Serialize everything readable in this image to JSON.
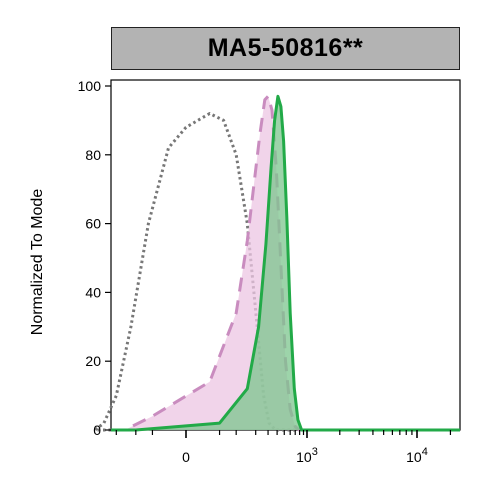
{
  "chart_data": {
    "type": "area",
    "title": "MA5-50816**",
    "xlabel": "",
    "ylabel": "Normalized To Mode",
    "ylim": [
      0,
      100
    ],
    "yticks": [
      0,
      20,
      40,
      60,
      80,
      100
    ],
    "xscale": "biexponential",
    "xticks": [
      {
        "value": 0,
        "label": "0",
        "exp": ""
      },
      {
        "value": 1000,
        "label": "10",
        "exp": "3"
      },
      {
        "value": 10000,
        "label": "10",
        "exp": "4"
      }
    ],
    "grid": false,
    "series": [
      {
        "style": "dotted",
        "color": "#777777",
        "fill": "none",
        "points": [
          [
            -400,
            0
          ],
          [
            -300,
            2
          ],
          [
            -200,
            10
          ],
          [
            -120,
            30
          ],
          [
            -60,
            60
          ],
          [
            -20,
            82
          ],
          [
            0,
            88
          ],
          [
            30,
            92
          ],
          [
            60,
            90
          ],
          [
            100,
            80
          ],
          [
            150,
            60
          ],
          [
            210,
            30
          ],
          [
            260,
            10
          ],
          [
            310,
            2
          ],
          [
            380,
            0
          ]
        ]
      },
      {
        "style": "dashed",
        "color": "#c98cbf",
        "fill": "#ecc6e3",
        "points": [
          [
            -150,
            0
          ],
          [
            -50,
            4
          ],
          [
            30,
            14
          ],
          [
            100,
            34
          ],
          [
            150,
            55
          ],
          [
            190,
            72
          ],
          [
            230,
            86
          ],
          [
            270,
            96
          ],
          [
            300,
            97
          ],
          [
            340,
            93
          ],
          [
            390,
            76
          ],
          [
            450,
            48
          ],
          [
            520,
            20
          ],
          [
            600,
            6
          ],
          [
            700,
            1
          ],
          [
            800,
            0
          ]
        ]
      },
      {
        "style": "solid",
        "color": "#22aa48",
        "fill": "#7cc68d",
        "points": [
          [
            -100,
            0
          ],
          [
            50,
            2
          ],
          [
            150,
            12
          ],
          [
            220,
            30
          ],
          [
            280,
            54
          ],
          [
            330,
            76
          ],
          [
            370,
            90
          ],
          [
            410,
            97
          ],
          [
            450,
            94
          ],
          [
            490,
            84
          ],
          [
            540,
            62
          ],
          [
            600,
            34
          ],
          [
            680,
            12
          ],
          [
            760,
            3
          ],
          [
            850,
            0
          ]
        ]
      }
    ]
  }
}
